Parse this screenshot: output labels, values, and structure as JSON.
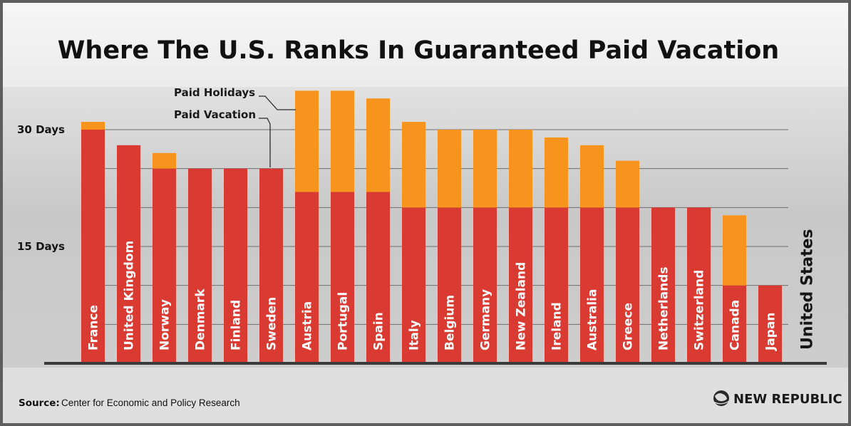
{
  "chart_data": {
    "type": "bar",
    "stacked": true,
    "title": "Where The U.S. Ranks In Guaranteed Paid Vacation",
    "categories": [
      "France",
      "United Kingdom",
      "Norway",
      "Denmark",
      "Finland",
      "Sweden",
      "Austria",
      "Portugal",
      "Spain",
      "Italy",
      "Belgium",
      "Germany",
      "New Zealand",
      "Ireland",
      "Australia",
      "Greece",
      "Netherlands",
      "Switzerland",
      "Canada",
      "Japan",
      "United States"
    ],
    "series": [
      {
        "name": "Paid Vacation",
        "color": "#d93a32",
        "values": [
          30,
          28,
          25,
          25,
          25,
          25,
          22,
          22,
          22,
          20,
          20,
          20,
          20,
          20,
          20,
          20,
          20,
          20,
          10,
          10,
          0
        ]
      },
      {
        "name": "Paid Holidays",
        "color": "#f7941d",
        "values": [
          1,
          0,
          2,
          0,
          0,
          0,
          13,
          13,
          12,
          11,
          10,
          10,
          10,
          9,
          8,
          6,
          0,
          0,
          9,
          0,
          0
        ]
      }
    ],
    "y_ticks": [
      {
        "value": 30,
        "label": "30 Days"
      },
      {
        "value": 15,
        "label": "15 Days"
      }
    ],
    "ylim": [
      0,
      35
    ],
    "grid": true
  },
  "source": {
    "label": "Source:",
    "text": "Center for Economic and Policy Research"
  },
  "brand": {
    "name": "NEW REPUBLIC",
    "logo_icon": "globe-logo-icon"
  }
}
